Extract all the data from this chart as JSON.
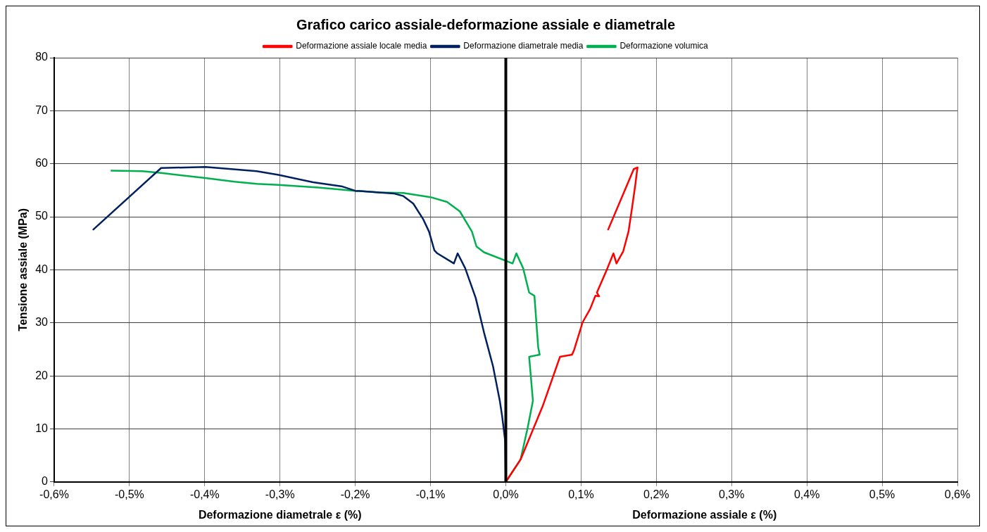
{
  "chart_data": {
    "type": "line",
    "title": "Grafico carico assiale-deformazione assiale e diametrale",
    "xlabel": "Deformazione diametrale ε (%)",
    "ylabel": "Tensione assiale (MPa)",
    "annotations": [
      "Deformazione assiale ε (%)"
    ],
    "xlim": [
      -0.6,
      0.6
    ],
    "xticks": [
      {
        "value": -0.6,
        "label": "-0,6%"
      },
      {
        "value": -0.5,
        "label": "-0,5%"
      },
      {
        "value": -0.4,
        "label": "-0,4%"
      },
      {
        "value": -0.3,
        "label": "-0,3%"
      },
      {
        "value": -0.2,
        "label": "-0,2%"
      },
      {
        "value": -0.1,
        "label": "-0,1%"
      },
      {
        "value": 0,
        "label": "0,0%"
      },
      {
        "value": 0.1,
        "label": "0,1%"
      },
      {
        "value": 0.2,
        "label": "0,2%"
      },
      {
        "value": 0.3,
        "label": "0,3%"
      },
      {
        "value": 0.4,
        "label": "0,4%"
      },
      {
        "value": 0.5,
        "label": "0,5%"
      },
      {
        "value": 0.6,
        "label": "0,6%"
      }
    ],
    "ylim": [
      0,
      80
    ],
    "yticks": [
      0,
      10,
      20,
      30,
      40,
      50,
      60,
      70,
      80
    ],
    "grid": true,
    "legend": "top",
    "marker": "none",
    "line_style": "solid",
    "ref_lines": [
      {
        "axis": "x",
        "value": 0,
        "color": "#000000"
      }
    ],
    "series": [
      {
        "name": "Deformazione assiale locale media",
        "color": "#ff0000",
        "x": [
          0,
          0.0195,
          0.049,
          0.072,
          0.088,
          0.091,
          0.102,
          0.112,
          0.119,
          0.124,
          0.121,
          0.135,
          0.143,
          0.147,
          0.156,
          0.163,
          0.167,
          0.172,
          0.174,
          0.175,
          0.17,
          0.136
        ],
        "values": [
          0,
          4.2,
          14.3,
          23.6,
          24.0,
          25,
          30.1,
          32.6,
          35.1,
          35.0,
          35.7,
          40.3,
          43.1,
          41.2,
          43.5,
          47.2,
          51,
          56,
          58.3,
          59.3,
          59.0,
          47.6
        ]
      },
      {
        "name": "Deformazione diametrale media",
        "color": "#002060",
        "x": [
          0,
          -0.001,
          -0.005,
          -0.008,
          -0.017,
          -0.029,
          -0.04,
          -0.054,
          -0.064,
          -0.069,
          -0.091,
          -0.095,
          -0.102,
          -0.11,
          -0.123,
          -0.136,
          -0.149,
          -0.2,
          -0.217,
          -0.256,
          -0.302,
          -0.331,
          -0.399,
          -0.458,
          -0.548
        ],
        "values": [
          0,
          7.9,
          12.5,
          15.3,
          21.8,
          28.2,
          34.7,
          40.3,
          43.1,
          41.2,
          43.1,
          43.7,
          47.2,
          49.6,
          52.5,
          53.9,
          54.4,
          54.9,
          55.7,
          56.5,
          57.9,
          58.6,
          59.4,
          59.2,
          47.6
        ]
      },
      {
        "name": "Deformazione volumica",
        "color": "#00b050",
        "x": [
          0,
          0.0195,
          0.029,
          0.036,
          0.031,
          0.045,
          0.043,
          0.038,
          0.031,
          0.023,
          0.014,
          0.009,
          -0.029,
          -0.039,
          -0.045,
          -0.061,
          -0.078,
          -0.1,
          -0.136,
          -0.168,
          -0.2,
          -0.249,
          -0.302,
          -0.331,
          -0.36,
          -0.399,
          -0.46,
          -0.483,
          -0.524
        ],
        "values": [
          0,
          4.2,
          10.2,
          15.3,
          23.6,
          24.0,
          25.4,
          35.1,
          35.7,
          40.3,
          43.1,
          41.2,
          43.3,
          44.4,
          47.2,
          51,
          52.8,
          53.7,
          54.5,
          54.6,
          54.9,
          55.5,
          56,
          56.2,
          56.6,
          57.3,
          58.3,
          58.6,
          58.7
        ]
      }
    ]
  }
}
